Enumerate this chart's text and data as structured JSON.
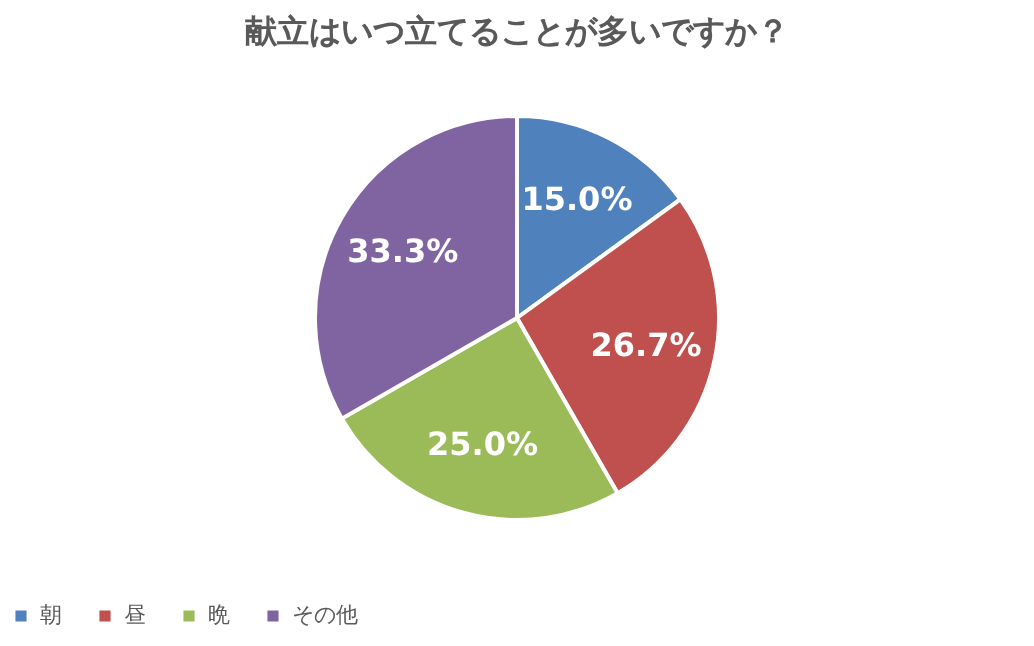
{
  "chart_data": {
    "type": "pie",
    "title": "献立はいつ立てることが多いですか？",
    "categories": [
      "朝",
      "昼",
      "晩",
      "その他"
    ],
    "values": [
      15.0,
      26.7,
      25.0,
      33.3
    ],
    "colors": [
      "#4f81bd",
      "#c0504d",
      "#9bbb59",
      "#8064a2"
    ],
    "value_labels": [
      "15.0%",
      "26.7%",
      "25.0%",
      "33.3%"
    ],
    "legend": "bottom"
  }
}
